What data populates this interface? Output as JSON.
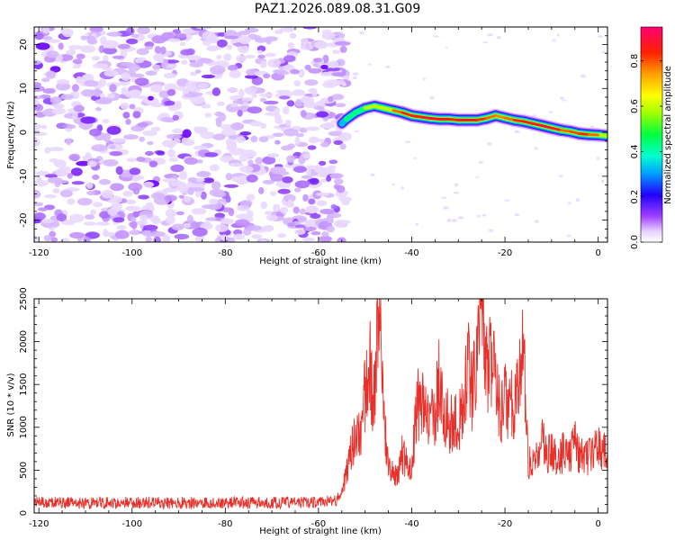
{
  "title": "PAZ1.2026.089.08.31.G09",
  "chart_data": [
    {
      "type": "heatmap",
      "name": "spectrogram",
      "xlabel": "Height of straight line (km)",
      "ylabel": "Frequency (Hz)",
      "xlim": [
        -121,
        2
      ],
      "ylim": [
        -25,
        24
      ],
      "xticks": [
        -120,
        -100,
        -80,
        -60,
        -40,
        -20,
        0
      ],
      "yticks": [
        -20,
        -10,
        0,
        10,
        20
      ],
      "noise_region_x": [
        -121,
        -54
      ],
      "signal_ridge": {
        "x": [
          -55,
          -54,
          -52,
          -50,
          -48,
          -46,
          -44,
          -42,
          -40,
          -38,
          -36,
          -34,
          -32,
          -30,
          -28,
          -26,
          -24,
          -22,
          -20,
          -18,
          -16,
          -14,
          -12,
          -10,
          -8,
          -6,
          -4,
          -2,
          0,
          2
        ],
        "freq": [
          2.0,
          3.0,
          4.5,
          5.5,
          6.0,
          5.5,
          5.0,
          4.5,
          3.8,
          3.5,
          3.2,
          3.0,
          3.0,
          2.8,
          2.8,
          2.8,
          3.2,
          3.8,
          3.3,
          2.8,
          2.5,
          2.0,
          1.5,
          1.0,
          0.5,
          0.2,
          -0.3,
          -0.5,
          -0.6,
          -0.8
        ],
        "amplitude": [
          0.3,
          0.45,
          0.55,
          0.55,
          0.6,
          0.7,
          0.8,
          0.85,
          0.9,
          0.9,
          0.95,
          0.95,
          0.9,
          0.9,
          0.95,
          0.9,
          0.85,
          0.8,
          0.8,
          0.85,
          0.9,
          0.9,
          0.95,
          0.95,
          0.85,
          0.8,
          0.9,
          0.85,
          0.8,
          0.7
        ]
      },
      "colorbar": {
        "label": "Normalized spectral amplitude",
        "range": [
          0.0,
          0.95
        ],
        "ticks": [
          0.0,
          0.2,
          0.4,
          0.6,
          0.8
        ],
        "tick_labels": [
          "0.0",
          "0.2",
          "0.4",
          "0.6",
          "0.8"
        ]
      }
    },
    {
      "type": "line",
      "name": "snr",
      "xlabel": "Height of straight line (km)",
      "ylabel": "SNR (10 * v/v)",
      "xlim": [
        -121,
        2
      ],
      "ylim": [
        0,
        2500
      ],
      "xticks": [
        -120,
        -100,
        -80,
        -60,
        -40,
        -20,
        0
      ],
      "yticks": [
        0,
        500,
        1000,
        1500,
        2000,
        2500
      ],
      "series": [
        {
          "name": "SNR",
          "color": "#e8302b",
          "x": [
            -121,
            -110,
            -100,
            -90,
            -80,
            -70,
            -60,
            -56,
            -55,
            -54,
            -53,
            -52,
            -51,
            -50,
            -49,
            -48,
            -47,
            -46,
            -45,
            -44,
            -43,
            -42,
            -41,
            -40,
            -39,
            -38,
            -37,
            -36,
            -35,
            -34,
            -33,
            -32,
            -31,
            -30,
            -29,
            -28,
            -27,
            -26,
            -25,
            -24,
            -23,
            -22,
            -21,
            -20,
            -19,
            -18,
            -17,
            -16,
            -15,
            -14,
            -13,
            -12,
            -11,
            -10,
            -9,
            -8,
            -7,
            -6,
            -5,
            -4,
            -3,
            -2,
            -1,
            0,
            1,
            2
          ],
          "y": [
            120,
            115,
            120,
            118,
            122,
            120,
            125,
            150,
            280,
            450,
            700,
            1000,
            900,
            1400,
            1700,
            1300,
            2300,
            1100,
            500,
            450,
            400,
            700,
            550,
            500,
            1250,
            1300,
            1100,
            1050,
            1200,
            1600,
            1150,
            1050,
            1000,
            1100,
            1200,
            1800,
            1400,
            1900,
            2450,
            1600,
            1900,
            1550,
            1100,
            1300,
            1350,
            1200,
            1450,
            1950,
            600,
            550,
            650,
            900,
            650,
            720,
            620,
            660,
            760,
            700,
            880,
            640,
            700,
            650,
            700,
            750,
            720,
            700
          ]
        }
      ]
    }
  ]
}
